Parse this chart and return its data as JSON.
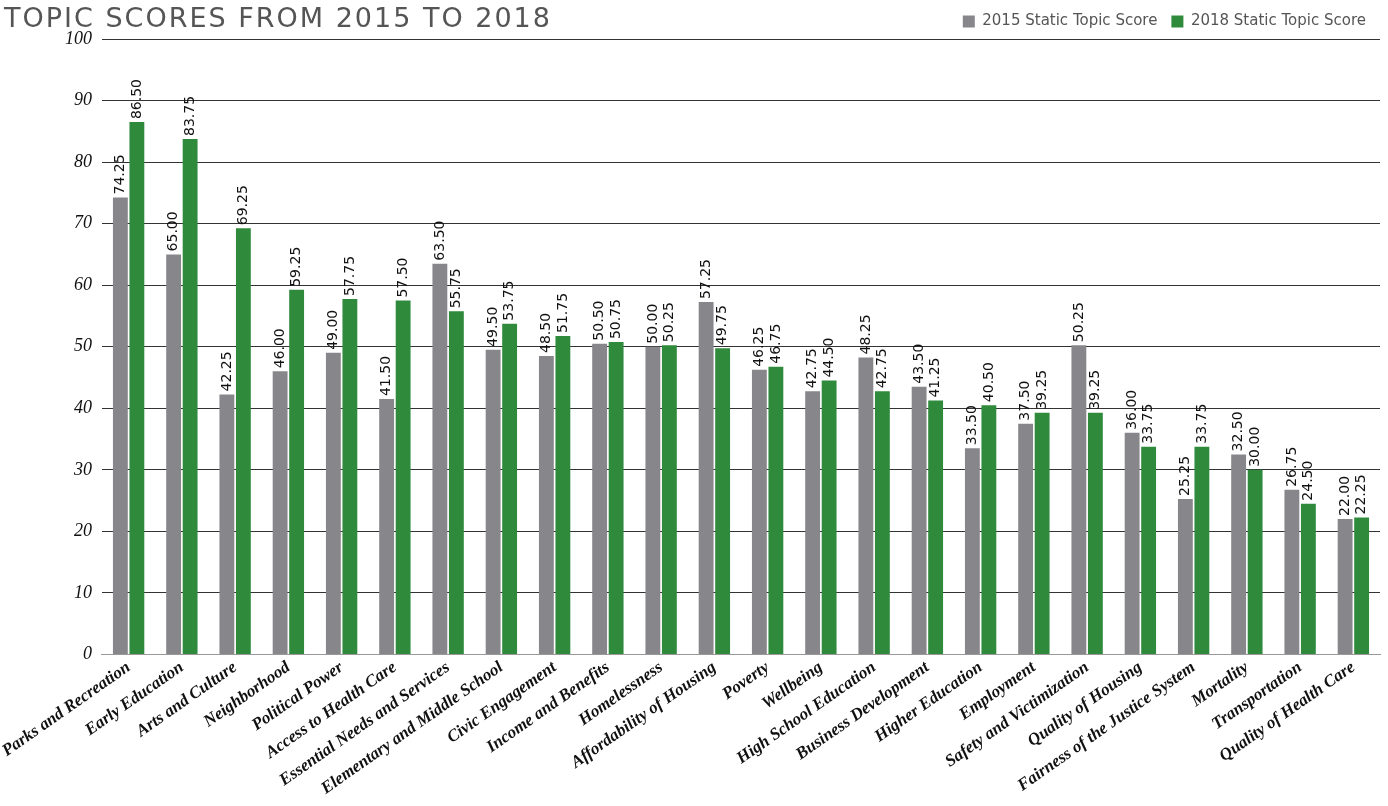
{
  "chart_data": {
    "type": "bar",
    "title": "TOPIC SCORES FROM 2015 TO 2018",
    "categories": [
      "Parks and Recreation",
      "Early Education",
      "Arts and Culture",
      "Neighborhood",
      "Political Power",
      "Access to Health Care",
      "Essential Needs and Services",
      "Elementary and Middle School",
      "Civic Engagement",
      "Income and Benefits",
      "Homelessness",
      "Affordability of Housing",
      "Poverty",
      "Wellbeing",
      "High School Education",
      "Business Development",
      "Higher Education",
      "Employment",
      "Safety and Victimization",
      "Quality of Housing",
      "Fairness of the Justice System",
      "Mortality",
      "Transportation",
      "Quality of Health Care"
    ],
    "series": [
      {
        "name": "2015 Static Topic Score",
        "color": "#87878b",
        "values": [
          74.25,
          65.0,
          42.25,
          46.0,
          49.0,
          41.5,
          63.5,
          49.5,
          48.5,
          50.5,
          50.0,
          57.25,
          46.25,
          42.75,
          48.25,
          43.5,
          33.5,
          37.5,
          50.25,
          36.0,
          25.25,
          32.5,
          26.75,
          22.0
        ],
        "value_labels": [
          "74.25",
          "65.00",
          "42.25",
          "46.00",
          "49.00",
          "41.50",
          "63.50",
          "49.50",
          "48.50",
          "50.50",
          "50.00",
          "57.25",
          "46.25",
          "42.75",
          "48.25",
          "43.50",
          "33.50",
          "37.50",
          "50.25",
          "36.00",
          "25.25",
          "32.50",
          "26.75",
          "22.00"
        ]
      },
      {
        "name": "2018 Static Topic Score",
        "color": "#2f8a3c",
        "values": [
          86.5,
          83.75,
          69.25,
          59.25,
          57.75,
          57.5,
          55.75,
          53.75,
          51.75,
          50.75,
          50.25,
          49.75,
          46.75,
          44.5,
          42.75,
          41.25,
          40.5,
          39.25,
          39.25,
          33.75,
          33.75,
          30.0,
          24.5,
          22.25
        ],
        "value_labels": [
          "86.50",
          "83.75",
          "69.25",
          "59.25",
          "57.75",
          "57.50",
          "55.75",
          "53.75",
          "51.75",
          "50.75",
          "50.25",
          "49.75",
          "46.75",
          "44.50",
          "42.75",
          "41.25",
          "40.50",
          "39.25",
          "39.25",
          "33.75",
          "33.75",
          "30.00",
          "24.50",
          "22.25"
        ]
      }
    ],
    "ylim": [
      0,
      100
    ],
    "yticks": [
      0,
      10,
      20,
      30,
      40,
      50,
      60,
      70,
      80,
      90,
      100
    ],
    "grid": "y",
    "legend": "top right"
  }
}
